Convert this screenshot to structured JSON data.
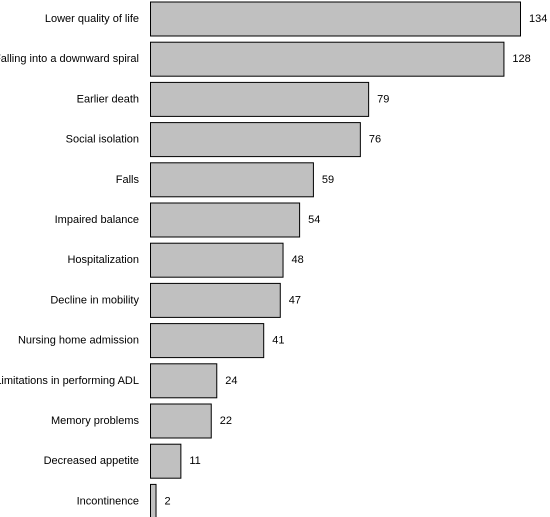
{
  "chart_data": {
    "type": "bar",
    "orientation": "horizontal",
    "categories": [
      "Lower quality of life",
      "Falling into a downward spiral",
      "Earlier death",
      "Social isolation",
      "Falls",
      "Impaired balance",
      "Hospitalization",
      "Decline in mobility",
      "Nursing home admission",
      "Limitations in performing ADL",
      "Memory problems",
      "Decreased appetite",
      "Incontinence"
    ],
    "values": [
      134,
      128,
      79,
      76,
      59,
      54,
      48,
      47,
      41,
      24,
      22,
      11,
      2
    ],
    "data_labels": [
      "134",
      "128",
      "79",
      "76",
      "59",
      "54",
      "48",
      "47",
      "41",
      "24",
      "22",
      "11",
      "2"
    ],
    "title": "",
    "xlabel": "",
    "ylabel": "",
    "xlim": [
      0,
      134
    ],
    "grid": false,
    "legend": "none",
    "colors": {
      "bar_fill": "#c0c0c0",
      "bar_stroke": "#000000",
      "text": "#000000"
    }
  }
}
